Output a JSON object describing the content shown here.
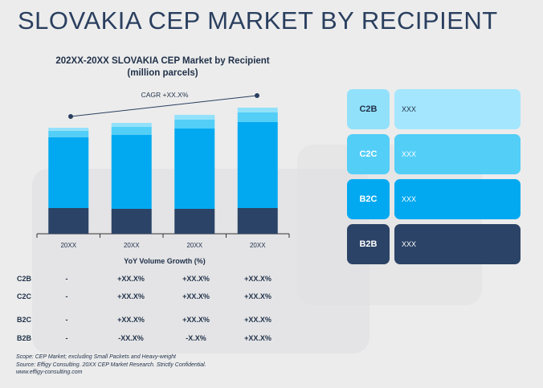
{
  "page": {
    "title": "SLOVAKIA CEP MARKET BY RECIPIENT"
  },
  "chart_data": {
    "type": "bar",
    "stacked": true,
    "title": "202XX-20XX SLOVAKIA CEP Market by Recipient",
    "subtitle": "(million parcels)",
    "annotation": "CAGR +XX.X%",
    "categories": [
      "20XX",
      "20XX",
      "20XX",
      "20XX"
    ],
    "series": [
      {
        "name": "B2B",
        "color": "#2b4366",
        "values": [
          32,
          31,
          31,
          32
        ]
      },
      {
        "name": "B2C",
        "color": "#03a9f0",
        "values": [
          88,
          92,
          100,
          107
        ]
      },
      {
        "name": "C2C",
        "color": "#53cef7",
        "values": [
          8,
          10,
          11,
          12
        ]
      },
      {
        "name": "C2B",
        "color": "#92e1fb",
        "values": [
          4,
          5,
          6,
          6
        ]
      }
    ],
    "ylim": [
      0,
      160
    ],
    "grid": false,
    "legend": "right"
  },
  "growth_table": {
    "title": "YoY Volume Growth (%)",
    "rows": [
      {
        "label": "C2B",
        "values": [
          "-",
          "+XX.X%",
          "+XX.X%",
          "+XX.X%"
        ]
      },
      {
        "label": "C2C",
        "values": [
          "-",
          "+XX.X%",
          "+XX.X%",
          "+XX.X%"
        ]
      },
      {
        "label": "B2C",
        "values": [
          "-",
          "+XX.X%",
          "+XX.X%",
          "+XX.X%"
        ]
      },
      {
        "label": "B2B",
        "values": [
          "-",
          "-XX.X%",
          "-X.X%",
          "+XX.X%"
        ]
      }
    ]
  },
  "legend_panel": [
    {
      "key": "C2B",
      "value": "XXX",
      "key_color": "#92e1fb",
      "value_color": "#a4e6fd",
      "text_color": "#1f3048"
    },
    {
      "key": "C2C",
      "value": "XXX",
      "key_color": "#53cef7",
      "value_color": "#53cef7",
      "text_color": "#ffffff"
    },
    {
      "key": "B2C",
      "value": "XXX",
      "key_color": "#03a9f0",
      "value_color": "#03a9f0",
      "text_color": "#ffffff"
    },
    {
      "key": "B2B",
      "value": "XXX",
      "key_color": "#2b4366",
      "value_color": "#2b4366",
      "text_color": "#ffffff"
    }
  ],
  "footnotes": [
    "Scope: CEP Market; excluding Small Packets and Heavy-weight",
    "Source: Effigy Consulting. 20XX CEP Market Research. Strictly Confidential.",
    "www.effigy-consulting.com"
  ]
}
